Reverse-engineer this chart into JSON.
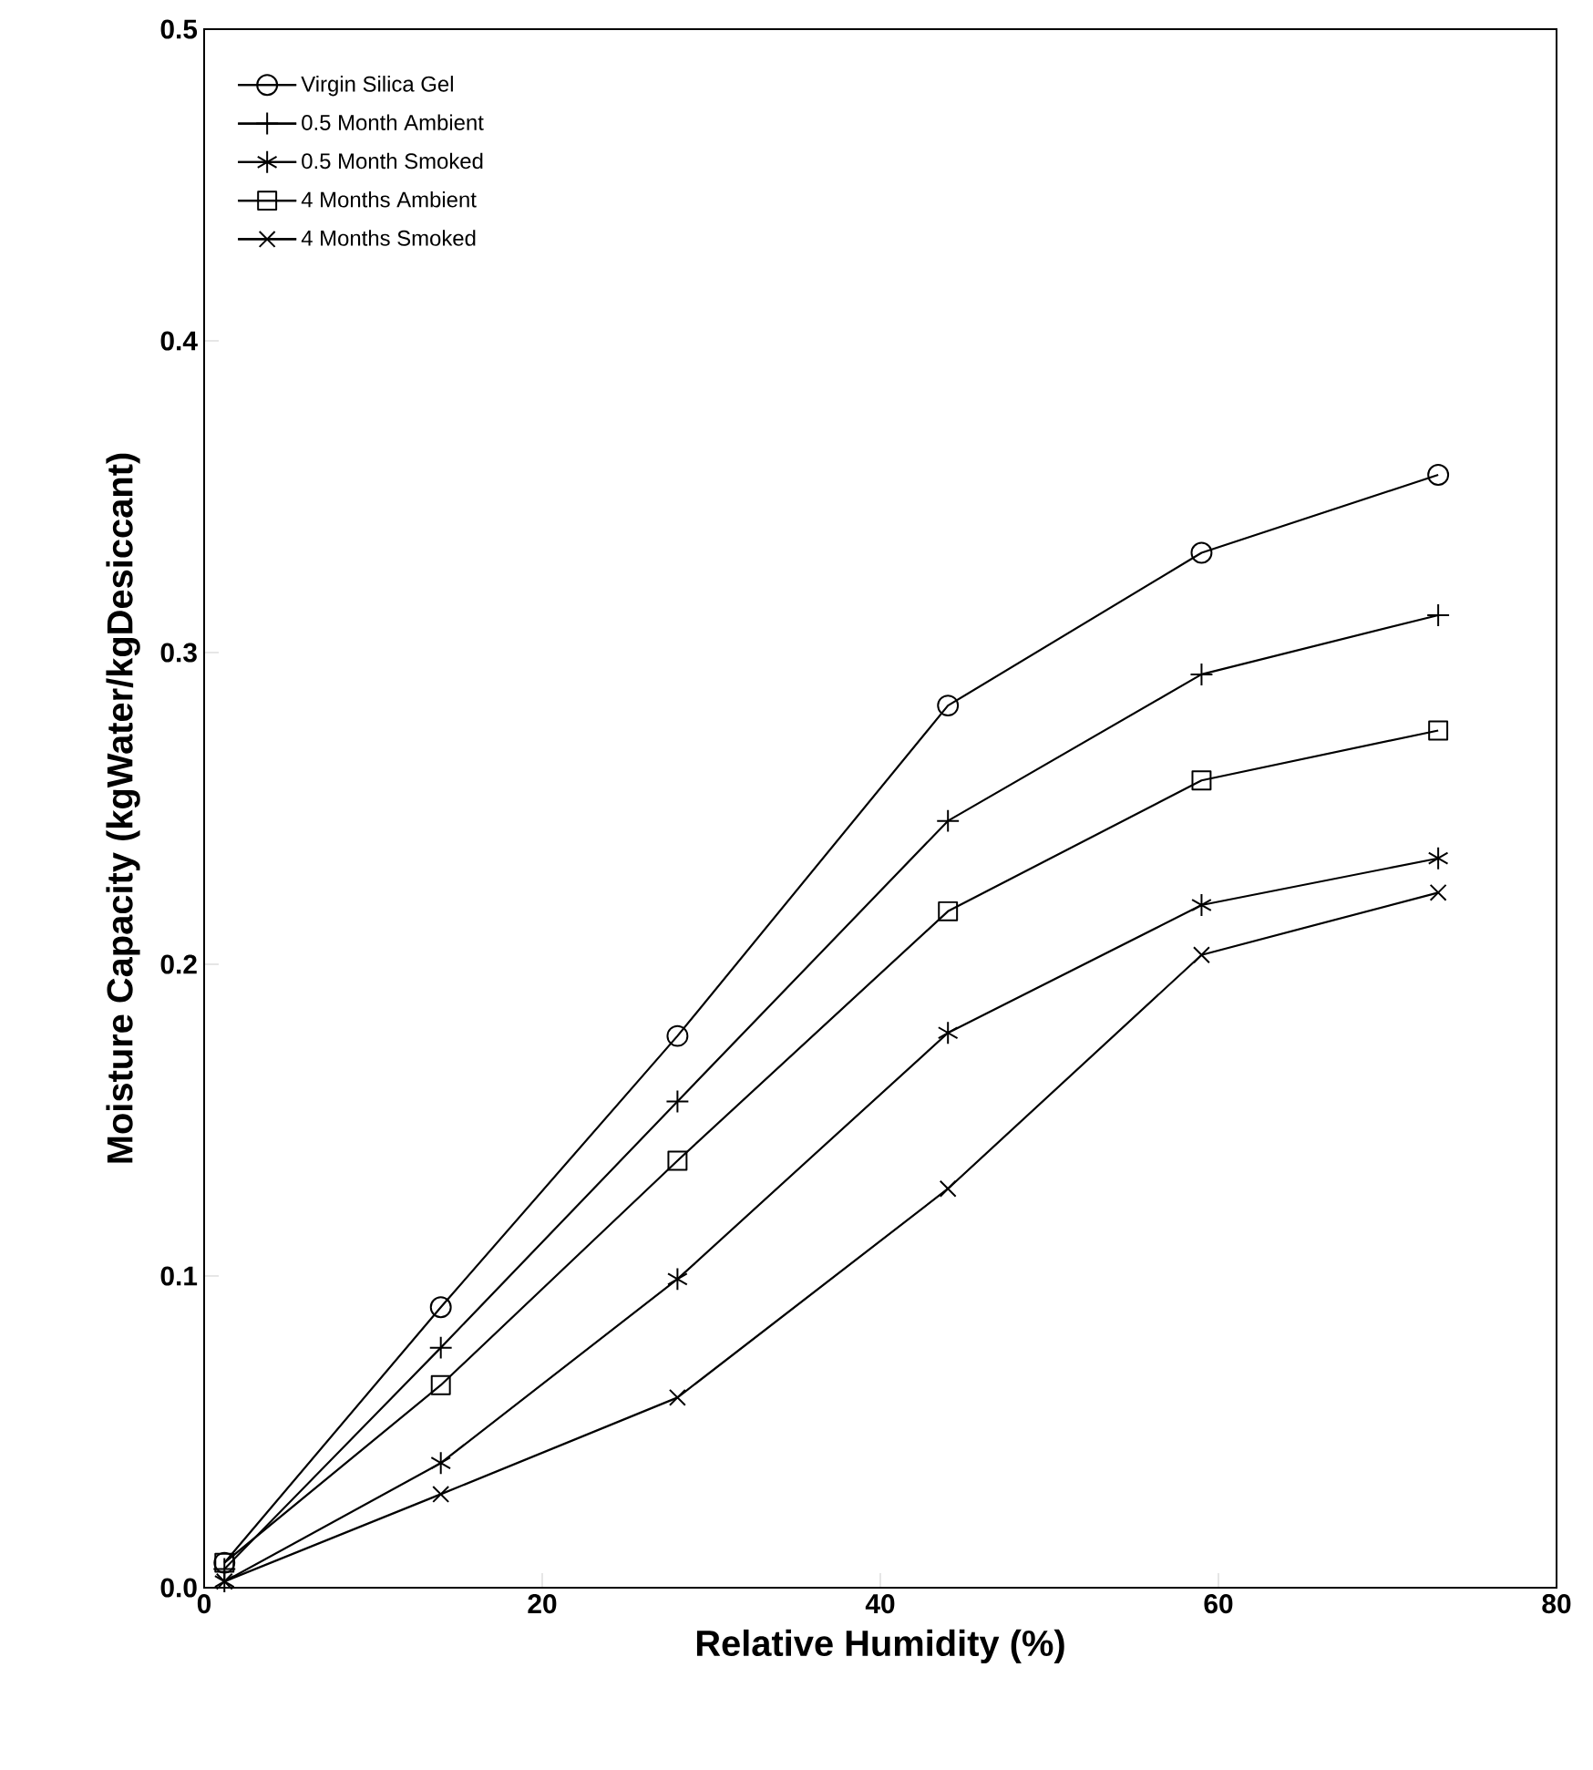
{
  "chart_data": {
    "type": "line",
    "xlabel": "Relative Humidity (%)",
    "ylabel": "Moisture Capacity (kgWater/kgDesiccant)",
    "x": [
      1.2,
      14,
      28,
      44,
      59,
      73
    ],
    "series": [
      {
        "name": "Virgin Silica Gel",
        "color": "#000000",
        "marker": "circle",
        "values": [
          0.008,
          0.09,
          0.177,
          0.283,
          0.332,
          0.357
        ]
      },
      {
        "name": "0.5 Month Ambient",
        "color": "#000000",
        "marker": "plus",
        "values": [
          0.006,
          0.077,
          0.156,
          0.246,
          0.293,
          0.312
        ]
      },
      {
        "name": "0.5 Month Smoked",
        "color": "#000000",
        "marker": "cross",
        "values": [
          0.002,
          0.04,
          0.099,
          0.178,
          0.219,
          0.234
        ]
      },
      {
        "name": "4 Months Ambient",
        "color": "#000000",
        "marker": "square",
        "values": [
          0.008,
          0.065,
          0.137,
          0.217,
          0.259,
          0.275
        ]
      },
      {
        "name": "4 Months Smoked",
        "color": "#000000",
        "marker": "x",
        "values": [
          0.002,
          0.03,
          0.061,
          0.128,
          0.203,
          0.223
        ]
      }
    ],
    "xlim": [
      0,
      80
    ],
    "xticks": [
      0,
      20,
      40,
      60,
      80
    ],
    "ylim": [
      0.0,
      0.5
    ],
    "yticks": [
      {
        "value": 0,
        "label": "0.0"
      },
      {
        "value": 0.1,
        "label": "0.1"
      },
      {
        "value": 0.2,
        "label": "0.2"
      },
      {
        "value": 0.3,
        "label": "0.3"
      },
      {
        "value": 0.4,
        "label": "0.4"
      },
      {
        "value": 0.5,
        "label": "0.5"
      }
    ],
    "grid": false,
    "legend": "top left",
    "line_style": "solid"
  }
}
